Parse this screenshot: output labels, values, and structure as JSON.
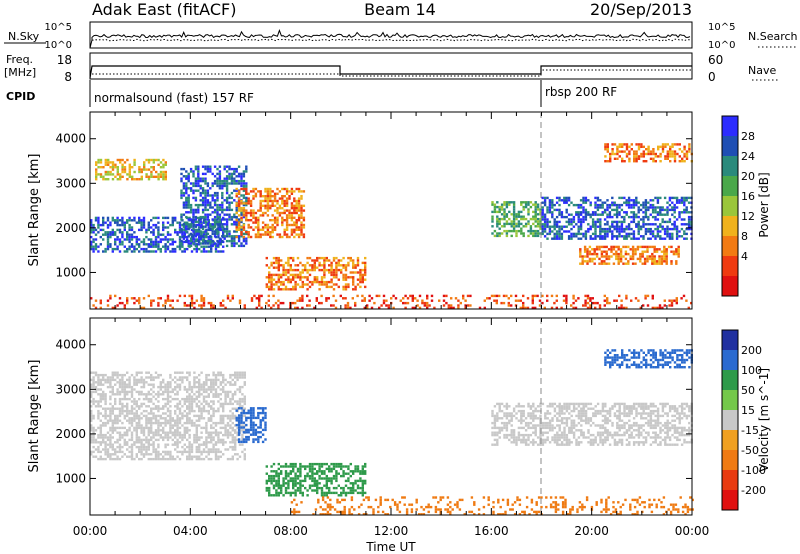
{
  "header": {
    "title": "Adak East (fitACF)",
    "beam": "Beam 14",
    "date": "20/Sep/2013"
  },
  "noise_panel": {
    "left_label": "N.Sky",
    "right_label": "N.Search",
    "tick_hi": "10^5",
    "tick_lo": "10^0"
  },
  "freq_panel": {
    "left_label_1": "Freq.",
    "left_label_2": "[MHz]",
    "left_ticks": [
      "18",
      "8"
    ],
    "right_label": "Nave",
    "right_ticks": [
      "60",
      "0"
    ]
  },
  "cpid_panel": {
    "label": "CPID",
    "programs": [
      "normalsound (fast) 157 RF",
      "rbsp 200 RF"
    ]
  },
  "x_axis": {
    "title": "Time UT",
    "tick_labels": [
      "00:00",
      "04:00",
      "08:00",
      "12:00",
      "16:00",
      "20:00",
      "00:00"
    ]
  },
  "chart_data": [
    {
      "type": "heatmap",
      "panel": "power",
      "xlabel": "Time UT",
      "ylabel": "Slant Range [km]",
      "xlim_hours": [
        0,
        24
      ],
      "ylim_km": [
        180,
        4600
      ],
      "y_tick_labels": [
        "1000",
        "2000",
        "3000",
        "4000"
      ],
      "colorbar": {
        "label": "Power [dB]",
        "tick_labels": [
          "28",
          "24",
          "20",
          "16",
          "12",
          "8",
          "4"
        ],
        "colors": [
          "#2c2cff",
          "#1f4fb4",
          "#2a8a7c",
          "#4aa84a",
          "#9ac63a",
          "#f0b21c",
          "#f27a12",
          "#ef3a10",
          "#e01010"
        ]
      },
      "echo_regions": [
        {
          "t0": 0,
          "t1": 5.3,
          "r0": 1450,
          "r1": 2250,
          "level": 7
        },
        {
          "t0": 3.6,
          "t1": 6.2,
          "r0": 1600,
          "r1": 3400,
          "level": 7
        },
        {
          "t0": 0.2,
          "t1": 3.0,
          "r0": 3100,
          "r1": 3550,
          "level": 3
        },
        {
          "t0": 5.8,
          "t1": 8.5,
          "r0": 1800,
          "r1": 2900,
          "level": 2
        },
        {
          "t0": 7.0,
          "t1": 11.0,
          "r0": 600,
          "r1": 1350,
          "level": 2
        },
        {
          "t0": 16.0,
          "t1": 18.0,
          "r0": 1800,
          "r1": 2600,
          "level": 5
        },
        {
          "t0": 18.0,
          "t1": 24.0,
          "r0": 1750,
          "r1": 2700,
          "level": 7
        },
        {
          "t0": 19.5,
          "t1": 23.5,
          "r0": 1200,
          "r1": 1600,
          "level": 2
        },
        {
          "t0": 20.5,
          "t1": 24.0,
          "r0": 3500,
          "r1": 3900,
          "level": 2
        },
        {
          "t0": 0,
          "t1": 24.0,
          "r0": 180,
          "r1": 500,
          "level": 1
        }
      ]
    },
    {
      "type": "heatmap",
      "panel": "velocity",
      "xlabel": "Time UT",
      "ylabel": "Slant Range [km]",
      "xlim_hours": [
        0,
        24
      ],
      "ylim_km": [
        180,
        4600
      ],
      "y_tick_labels": [
        "1000",
        "2000",
        "3000",
        "4000"
      ],
      "colorbar": {
        "label": "Velocity [m s^-1]",
        "tick_labels": [
          "200",
          "100",
          "50",
          "15",
          "-15",
          "-50",
          "-100",
          "-200"
        ],
        "colors": [
          "#2030a0",
          "#2a6acf",
          "#2e9a4a",
          "#74c84a",
          "#c8c8c8",
          "#f0a020",
          "#ef7a12",
          "#e83a10",
          "#e01010"
        ]
      },
      "echo_regions": [
        {
          "t0": 0,
          "t1": 6.2,
          "r0": 1450,
          "r1": 3400,
          "velocity": "ground"
        },
        {
          "t0": 5.8,
          "t1": 7.0,
          "r0": 1800,
          "r1": 2600,
          "velocity": 150
        },
        {
          "t0": 7.0,
          "t1": 11.0,
          "r0": 600,
          "r1": 1350,
          "velocity": 40
        },
        {
          "t0": 16.0,
          "t1": 24.0,
          "r0": 1750,
          "r1": 2700,
          "velocity": "ground"
        },
        {
          "t0": 20.5,
          "t1": 24.0,
          "r0": 3500,
          "r1": 3900,
          "velocity": 150
        },
        {
          "t0": 8.0,
          "t1": 24.0,
          "r0": 180,
          "r1": 600,
          "velocity": -40
        }
      ]
    }
  ]
}
